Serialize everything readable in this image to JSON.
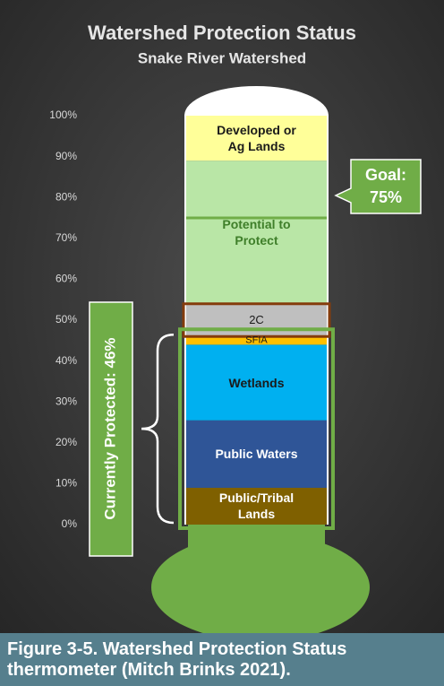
{
  "chart_data": {
    "type": "stacked-bar",
    "title": "Watershed Protection Status",
    "subtitle": "Snake River Watershed",
    "categories": [
      null
    ],
    "series": [
      {
        "name": "Public/Tribal Lands",
        "color": "#7f6000",
        "text_color": "#ffffff",
        "values": [
          9
        ]
      },
      {
        "name": "Public Waters",
        "color": "#2f5597",
        "text_color": "#ffffff",
        "values": [
          16.5
        ]
      },
      {
        "name": "Wetlands",
        "color": "#00b0f0",
        "text_color": "#1a1a1a",
        "values": [
          18.5
        ]
      },
      {
        "name": "SFIA",
        "color": "#ffc000",
        "text_color": "#1a1a1a",
        "values": [
          2
        ]
      },
      {
        "name": "2C",
        "color": "#bfbfbf",
        "text_color": "#1a1a1a",
        "values": [
          8
        ]
      },
      {
        "name": "Potential to Protect",
        "color": "#b9e6a6",
        "text_color": "#3f7f2a",
        "values": [
          35
        ]
      },
      {
        "name": "Developed or Ag Lands",
        "color": "#ffff99",
        "text_color": "#1a1a1a",
        "values": [
          11
        ]
      }
    ],
    "ylim": [
      0,
      100
    ],
    "yticks": [
      {
        "value": 0,
        "label": "0%"
      },
      {
        "value": 10,
        "label": "10%"
      },
      {
        "value": 20,
        "label": "20%"
      },
      {
        "value": 30,
        "label": "30%"
      },
      {
        "value": 40,
        "label": "40%"
      },
      {
        "value": 50,
        "label": "50%"
      },
      {
        "value": 60,
        "label": "60%"
      },
      {
        "value": 70,
        "label": "70%"
      },
      {
        "value": 80,
        "label": "80%"
      },
      {
        "value": 90,
        "label": "90%"
      },
      {
        "value": 100,
        "label": "100%"
      }
    ],
    "goal_value": 75,
    "goal_label": [
      "Goal:",
      "75%"
    ],
    "protected_label": "Currently Protected: 46%",
    "accent_color": "#70ad47",
    "caption": "Figure 3-5. Watershed Protection Status thermometer (Mitch Brinks 2021)."
  }
}
